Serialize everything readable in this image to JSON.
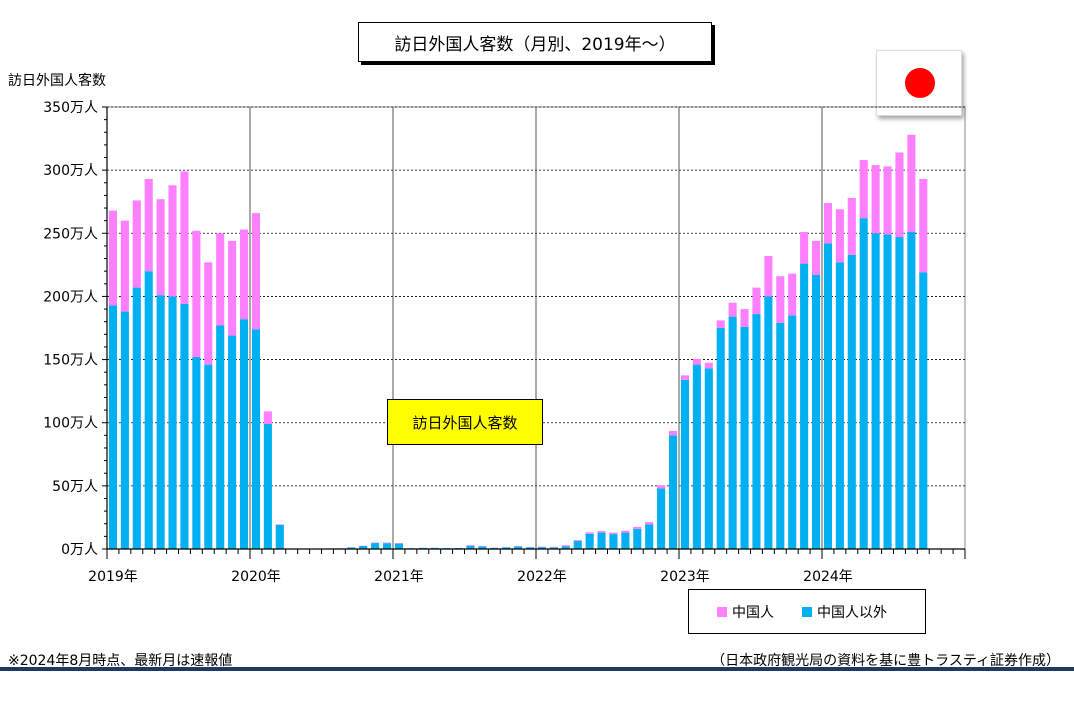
{
  "title": "訪日外国人客数（月別、2019年～）",
  "annotation": "訪日外国人客数",
  "footnote": "※2024年8月時点、最新月は速報値",
  "source": "（日本政府観光局の資料を基に豊トラスティ証券作成）",
  "flag_icon": "japan-flag-icon",
  "colors": {
    "chinese": "#ff80ff",
    "non_chinese": "#00b0f0",
    "title_shadow": "#000000",
    "annotation_bg": "#ffff00",
    "bottom_rule": "#1f3864"
  },
  "chart_data": {
    "type": "bar",
    "stacked": true,
    "ylabel": "訪日外国人客数",
    "ylim": [
      0,
      350
    ],
    "yticks": [
      0,
      50,
      100,
      150,
      200,
      250,
      300,
      350
    ],
    "ytick_labels": [
      "0万人",
      "50万人",
      "100万人",
      "150万人",
      "200万人",
      "250万人",
      "300万人",
      "350万人"
    ],
    "x_year_labels": [
      "2019年",
      "2020年",
      "2021年",
      "2022年",
      "2023年",
      "2024年"
    ],
    "x_slots": 72,
    "grid": true,
    "legend": {
      "placement": "bottom-right",
      "entries": [
        "中国人",
        "中国人以外"
      ]
    },
    "series": [
      {
        "name": "中国人以外",
        "values": [
          193,
          188,
          207,
          220,
          201,
          200,
          194,
          152,
          146,
          177,
          169,
          182,
          174,
          99,
          19,
          0.3,
          0.2,
          0.3,
          0.4,
          0.5,
          1.2,
          2.4,
          4.7,
          4.6,
          4.3,
          0.6,
          0.9,
          0.9,
          0.7,
          0.8,
          2.6,
          2.1,
          0.9,
          1.3,
          2.1,
          1.4,
          1.5,
          1.3,
          2.2,
          6.5,
          12,
          13,
          11.8,
          13,
          16,
          19.5,
          48,
          90,
          134,
          146,
          143,
          175,
          184,
          176,
          186,
          200,
          179,
          185,
          226,
          217,
          242,
          227,
          233,
          262,
          250,
          249,
          247,
          251,
          219
        ]
      },
      {
        "name": "中国人",
        "values": [
          75,
          72,
          69,
          73,
          76,
          88,
          105,
          100,
          81,
          73,
          75,
          71,
          92,
          10,
          0.5,
          0,
          0,
          0,
          0,
          0,
          0.1,
          0.2,
          0.4,
          0.5,
          0.4,
          0,
          0,
          0,
          0,
          0,
          0.5,
          0.3,
          0.1,
          0.2,
          0.3,
          0.2,
          0.3,
          0.4,
          0.8,
          0.6,
          1.2,
          1.2,
          1.2,
          1.5,
          1.5,
          1.8,
          2.5,
          3.5,
          3.5,
          4.5,
          4.5,
          6,
          11,
          14,
          21,
          32,
          37,
          33,
          25,
          27,
          32,
          42,
          45,
          46,
          54,
          54,
          67,
          77,
          74
        ]
      }
    ]
  }
}
